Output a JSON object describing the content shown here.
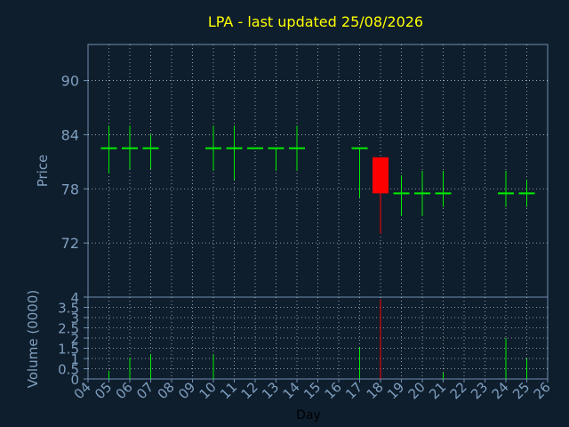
{
  "colors": {
    "background": "#0f1e2d",
    "title": "#ffff00",
    "axis_text": "#7f9fbf",
    "frame": "#6f8faf",
    "grid": "#ffffff",
    "up": "#00ee00",
    "down": "#ff0000",
    "x_label": "#000000"
  },
  "chart_data": [
    {
      "type": "candlestick",
      "title": "LPA - last updated 25/08/2026",
      "ylabel": "Price",
      "xlabel": "",
      "ylim": [
        66,
        94
      ],
      "yticks": [
        72,
        78,
        84,
        90
      ],
      "xlim": [
        0,
        22
      ],
      "grid": true,
      "candles": [
        {
          "day": "05",
          "open": 82.5,
          "high": 85,
          "low": 79.7,
          "close": 82.5
        },
        {
          "day": "06",
          "open": 82.5,
          "high": 85,
          "low": 80.2,
          "close": 82.5
        },
        {
          "day": "07",
          "open": 82.5,
          "high": 84,
          "low": 80.2,
          "close": 82.5
        },
        {
          "day": "10",
          "open": 82.5,
          "high": 85,
          "low": 80,
          "close": 82.5
        },
        {
          "day": "11",
          "open": 82.5,
          "high": 85,
          "low": 79,
          "close": 82.5
        },
        {
          "day": "12",
          "open": 82.5,
          "high": 82.5,
          "low": 82.5,
          "close": 82.5
        },
        {
          "day": "13",
          "open": 82.5,
          "high": 82.5,
          "low": 80,
          "close": 82.5
        },
        {
          "day": "14",
          "open": 82.5,
          "high": 85,
          "low": 80,
          "close": 82.5
        },
        {
          "day": "17",
          "open": 82.5,
          "high": 82.5,
          "low": 77,
          "close": 82.5
        },
        {
          "day": "18",
          "open": 81.5,
          "high": 81.5,
          "low": 73,
          "close": 77.5
        },
        {
          "day": "19",
          "open": 77.5,
          "high": 79.5,
          "low": 75,
          "close": 77.5
        },
        {
          "day": "20",
          "open": 77.5,
          "high": 80,
          "low": 75,
          "close": 77.5
        },
        {
          "day": "21",
          "open": 77.5,
          "high": 80,
          "low": 76,
          "close": 77.5
        },
        {
          "day": "24",
          "open": 77.5,
          "high": 80,
          "low": 76,
          "close": 77.5
        },
        {
          "day": "25",
          "open": 77.5,
          "high": 79,
          "low": 76,
          "close": 77.5
        }
      ]
    },
    {
      "type": "bar",
      "ylabel": "Volume (0000)",
      "xlabel": "Day",
      "ylim": [
        0,
        4
      ],
      "yticks": [
        "0",
        "0.5",
        "1",
        "1.5",
        "2",
        "2.5",
        "3",
        "3.5",
        "4"
      ],
      "xlim": [
        0,
        22
      ],
      "grid": true,
      "categories": [
        "04",
        "05",
        "06",
        "07",
        "08",
        "09",
        "10",
        "11",
        "12",
        "13",
        "14",
        "15",
        "16",
        "17",
        "18",
        "19",
        "20",
        "21",
        "22",
        "23",
        "24",
        "25",
        "26"
      ],
      "values": [
        0,
        0.4,
        1.05,
        1.2,
        0,
        0,
        1.2,
        0,
        0,
        0,
        0,
        0,
        0,
        1.55,
        3.9,
        0,
        0,
        0.3,
        0,
        0,
        2,
        1,
        0
      ],
      "colors": [
        "up",
        "up",
        "up",
        "up",
        "up",
        "up",
        "up",
        "up",
        "up",
        "up",
        "up",
        "up",
        "up",
        "up",
        "down",
        "up",
        "up",
        "up",
        "up",
        "up",
        "up",
        "up",
        "up"
      ]
    }
  ]
}
